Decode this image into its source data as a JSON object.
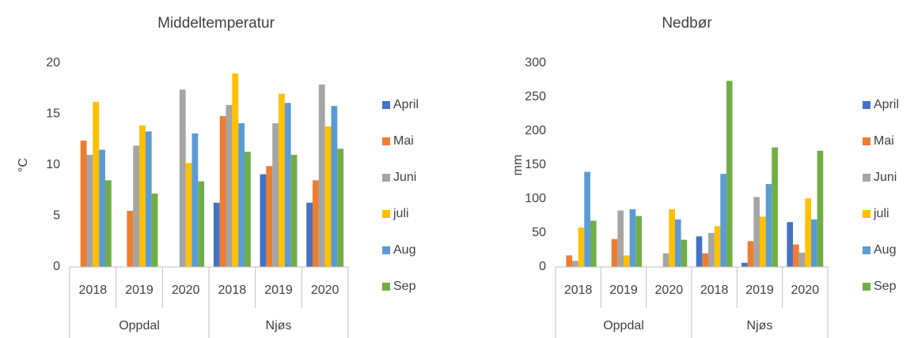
{
  "chart_data": [
    {
      "type": "bar",
      "title": "Middeltemperatur",
      "y_label": "°C",
      "categories": [
        "2018",
        "2019",
        "2020",
        "2018",
        "2019",
        "2020"
      ],
      "groups": [
        "Oppdal",
        "Njøs"
      ],
      "series": [
        {
          "name": "April",
          "color": "#4472c4",
          "values": [
            null,
            null,
            null,
            6.3,
            9.1,
            6.3
          ]
        },
        {
          "name": "Mai",
          "color": "#ed7d31",
          "values": [
            12.4,
            5.5,
            null,
            14.8,
            9.9,
            8.5
          ]
        },
        {
          "name": "Juni",
          "color": "#a5a5a5",
          "values": [
            11.0,
            11.9,
            17.4,
            15.9,
            14.1,
            17.9
          ]
        },
        {
          "name": "juli",
          "color": "#ffc000",
          "values": [
            16.2,
            13.9,
            10.2,
            19.0,
            17.0,
            13.8
          ]
        },
        {
          "name": "Aug",
          "color": "#5b9bd5",
          "values": [
            11.5,
            13.3,
            13.1,
            14.1,
            16.1,
            15.8
          ]
        },
        {
          "name": "Sep",
          "color": "#70ad47",
          "values": [
            8.5,
            7.2,
            8.4,
            11.3,
            11.0,
            11.6
          ]
        }
      ],
      "ylim": [
        0,
        20
      ],
      "yticks": [
        0,
        5,
        10,
        15,
        20
      ],
      "grid": false,
      "legend": "right"
    },
    {
      "type": "bar",
      "title": "Nedbør",
      "y_label": "mm",
      "categories": [
        "2018",
        "2019",
        "2020",
        "2018",
        "2019",
        "2020"
      ],
      "groups": [
        "Oppdal",
        "Njøs"
      ],
      "series": [
        {
          "name": "April",
          "color": "#4472c4",
          "values": [
            null,
            null,
            null,
            45,
            6,
            66
          ]
        },
        {
          "name": "Mai",
          "color": "#ed7d31",
          "values": [
            17,
            41,
            null,
            20,
            38,
            33
          ]
        },
        {
          "name": "Juni",
          "color": "#a5a5a5",
          "values": [
            9,
            83,
            20,
            50,
            103,
            21
          ]
        },
        {
          "name": "juli",
          "color": "#ffc000",
          "values": [
            58,
            17,
            85,
            60,
            74,
            101
          ]
        },
        {
          "name": "Aug",
          "color": "#5b9bd5",
          "values": [
            140,
            85,
            70,
            137,
            122,
            70
          ]
        },
        {
          "name": "Sep",
          "color": "#70ad47",
          "values": [
            68,
            75,
            40,
            274,
            176,
            171
          ]
        }
      ],
      "ylim": [
        0,
        300
      ],
      "yticks": [
        0,
        50,
        100,
        150,
        200,
        250,
        300
      ],
      "grid": false,
      "legend": "right"
    }
  ]
}
